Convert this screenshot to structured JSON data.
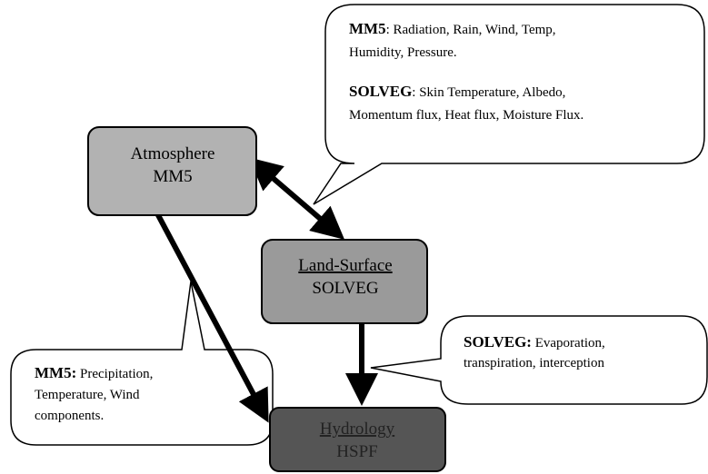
{
  "nodes": [
    {
      "label": "Atmosphere",
      "model": "MM5"
    },
    {
      "label": "Land-Surface",
      "model": "SOLVEG"
    },
    {
      "label": "Hydrology",
      "model": "HSPF"
    }
  ],
  "callouts": [
    {
      "paragraphs": [
        {
          "heading": "MM5",
          "lines": [
            ": Radiation, Rain, Wind, Temp,",
            "Humidity, Pressure."
          ]
        },
        {
          "heading": "SOLVEG",
          "lines": [
            ": Skin Temperature, Albedo,",
            "Momentum flux, Heat flux, Moisture Flux."
          ]
        }
      ]
    },
    {
      "paragraphs": [
        {
          "heading": "SOLVEG:",
          "lines": [
            " Evaporation,",
            "transpiration, interception"
          ]
        }
      ]
    },
    {
      "paragraphs": [
        {
          "heading": "MM5:",
          "lines": [
            " Precipitation,",
            "Temperature, Wind",
            "components."
          ]
        }
      ]
    }
  ]
}
